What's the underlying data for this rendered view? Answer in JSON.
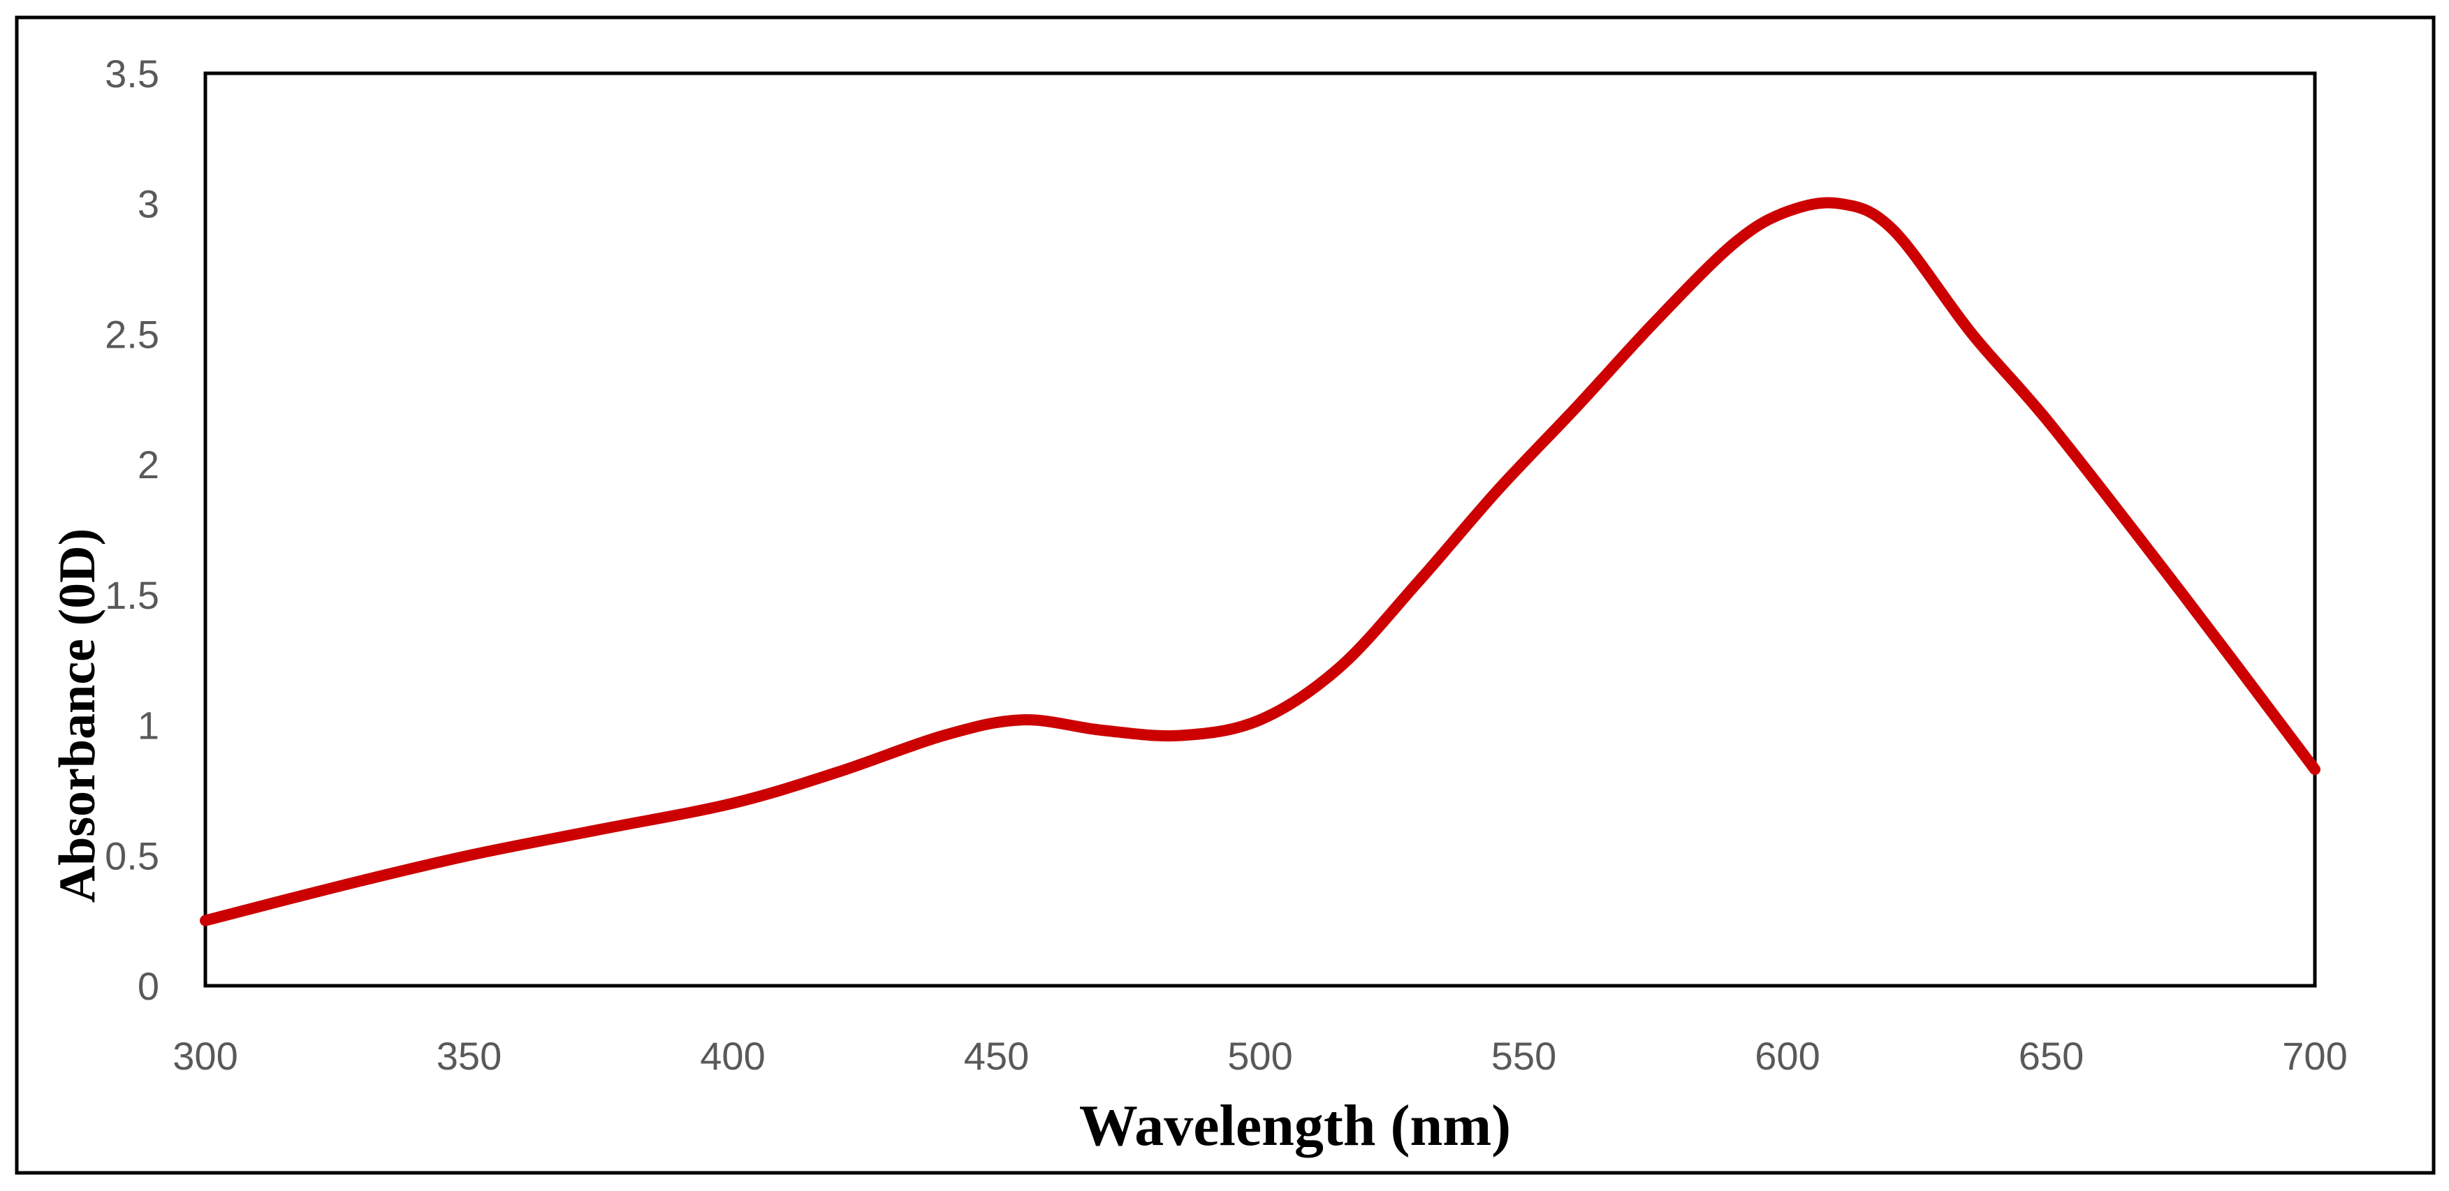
{
  "colors": {
    "series": "#cc0000",
    "axis": "#000000",
    "tick_text": "#595959",
    "border": "#000000",
    "background": "#ffffff"
  },
  "chart_data": {
    "type": "line",
    "title": "",
    "xlabel": "Wavelength (nm)",
    "ylabel": "Absorbance (0D)",
    "xlim": [
      300,
      700
    ],
    "ylim": [
      0,
      3.5
    ],
    "x_ticks": [
      "300",
      "350",
      "400",
      "450",
      "500",
      "550",
      "600",
      "650",
      "700"
    ],
    "y_ticks": [
      "0",
      "0.5",
      "1",
      "1.5",
      "2",
      "2.5",
      "3",
      "3.5"
    ],
    "grid": false,
    "legend": "none",
    "series": [
      {
        "name": "Absorbance",
        "x": [
          300,
          325,
          350,
          375,
          400,
          420,
          440,
          455,
          470,
          485,
          500,
          515,
          530,
          545,
          560,
          575,
          590,
          600,
          610,
          620,
          635,
          650,
          675,
          700
        ],
        "y": [
          0.25,
          0.38,
          0.5,
          0.6,
          0.7,
          0.82,
          0.96,
          1.02,
          0.98,
          0.96,
          1.02,
          1.22,
          1.55,
          1.9,
          2.22,
          2.55,
          2.85,
          2.97,
          3.0,
          2.9,
          2.5,
          2.15,
          1.5,
          0.83
        ]
      }
    ]
  }
}
